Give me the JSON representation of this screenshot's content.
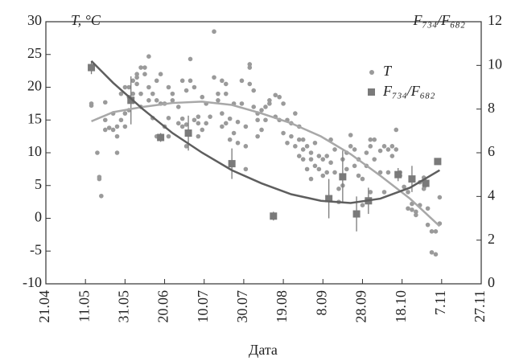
{
  "chart_data": {
    "type": "scatter",
    "xlabel": "Дата",
    "ylabel": "T, °C",
    "y2label": "F₇₃₄/F₆₈₂",
    "xlim": [
      111,
      331
    ],
    "xticks": [
      {
        "value": 111,
        "label": "21.04"
      },
      {
        "value": 131,
        "label": "11.05"
      },
      {
        "value": 151,
        "label": "31.05"
      },
      {
        "value": 171,
        "label": "20.06"
      },
      {
        "value": 191,
        "label": "10.07"
      },
      {
        "value": 211,
        "label": "30.07"
      },
      {
        "value": 231,
        "label": "19.08"
      },
      {
        "value": 251,
        "label": "8.09"
      },
      {
        "value": 271,
        "label": "28.09"
      },
      {
        "value": 291,
        "label": "18.10"
      },
      {
        "value": 311,
        "label": "7.11"
      },
      {
        "value": 331,
        "label": "27.11"
      }
    ],
    "ylim": [
      -10,
      30
    ],
    "yticks": [
      -10,
      -5,
      0,
      5,
      10,
      15,
      20,
      25,
      30
    ],
    "y2lim": [
      0,
      12
    ],
    "y2ticks": [
      0,
      2,
      4,
      6,
      8,
      10,
      12
    ],
    "series": [
      {
        "name": "T",
        "type": "scatter",
        "color": "#9a9a9a",
        "x": [
          134,
          134,
          137,
          138,
          138,
          139,
          141,
          141,
          141,
          143,
          145,
          145,
          147,
          147,
          147,
          149,
          149,
          151,
          151,
          151,
          153,
          153,
          153,
          155,
          155,
          157,
          157,
          157,
          159,
          159,
          159,
          161,
          161,
          163,
          163,
          163,
          165,
          165,
          167,
          167,
          167,
          169,
          169,
          171,
          171,
          173,
          173,
          173,
          175,
          175,
          178,
          178,
          180,
          180,
          180,
          182,
          182,
          182,
          184,
          184,
          186,
          186,
          188,
          188,
          188,
          190,
          190,
          192,
          192,
          194,
          196,
          196,
          198,
          198,
          200,
          200,
          200,
          202,
          202,
          202,
          204,
          204,
          206,
          206,
          208,
          208,
          210,
          210,
          212,
          212,
          212,
          214,
          214,
          214,
          216,
          216,
          218,
          218,
          218,
          220,
          220,
          222,
          222,
          224,
          224,
          227,
          227,
          229,
          229,
          231,
          231,
          233,
          233,
          235,
          235,
          237,
          237,
          239,
          239,
          239,
          241,
          241,
          241,
          243,
          243,
          245,
          245,
          245,
          247,
          247,
          249,
          249,
          251,
          251,
          253,
          253,
          255,
          255,
          257,
          257,
          259,
          259,
          261,
          261,
          263,
          263,
          265,
          265,
          267,
          267,
          269,
          269,
          271,
          271,
          273,
          273,
          275,
          275,
          275,
          277,
          277,
          280,
          280,
          282,
          282,
          284,
          284,
          286,
          286,
          288,
          288,
          290,
          290,
          292,
          294,
          294,
          296,
          296,
          298,
          298,
          300,
          300,
          302,
          302,
          304,
          304,
          306,
          306,
          308,
          308,
          310,
          310
        ],
        "values": [
          17.2,
          17.5,
          10,
          6.3,
          6,
          3.4,
          13.5,
          15,
          17.7,
          13.8,
          16,
          13.5,
          10,
          12.5,
          14,
          15,
          19,
          14,
          16,
          20,
          20,
          18.5,
          16.5,
          21,
          19,
          20.5,
          21.5,
          22,
          23,
          19,
          17,
          22,
          23,
          24.7,
          20,
          18,
          19,
          15.3,
          12.5,
          21,
          18,
          22,
          17.5,
          17.5,
          14,
          15.3,
          20,
          12.5,
          19,
          18,
          17,
          14.5,
          21,
          14,
          15.2,
          19.5,
          14.3,
          11,
          24.3,
          21,
          20,
          15,
          14.5,
          15.5,
          12.5,
          13.5,
          18.5,
          14.5,
          17.5,
          15.5,
          28.5,
          21.5,
          19,
          18,
          21,
          16,
          14,
          19,
          20.5,
          14.5,
          15.2,
          12,
          17.5,
          13,
          14.7,
          11.5,
          21,
          17.5,
          14,
          7.5,
          11,
          23.5,
          23,
          20.5,
          19.5,
          17,
          12.5,
          16,
          15,
          13.5,
          16.5,
          15,
          17,
          17.5,
          18,
          15.5,
          18.8,
          18.5,
          15,
          13,
          17.5,
          15,
          11.5,
          14.5,
          12.5,
          16,
          11,
          14,
          12,
          9.5,
          12,
          10.5,
          9,
          11,
          7.5,
          9,
          10,
          6,
          8,
          11.5,
          9.5,
          7.5,
          9,
          6.5,
          9.5,
          7,
          12,
          8.5,
          10.5,
          7,
          4.5,
          2.5,
          9,
          5,
          10,
          7.5,
          12.7,
          11,
          8,
          10.5,
          6.5,
          9,
          6,
          2,
          10,
          8,
          11,
          12,
          4,
          9,
          12,
          7,
          10.3,
          11,
          4,
          10.5,
          7,
          9.5,
          11,
          13.5,
          10.5,
          6.5,
          7,
          4.8,
          1.5,
          4,
          2.2,
          1.3,
          1,
          0.5,
          5.5,
          2,
          6.2,
          4.5,
          1.5,
          -1,
          -2,
          -5.2,
          -5.5,
          -2,
          3.2,
          -0.8
        ]
      },
      {
        "name": "F₇₃₄/F₆₈₂",
        "type": "scatter",
        "axis": "y2",
        "color": "#7a7a7a",
        "x": [
          134,
          154,
          169,
          183,
          205,
          226,
          254,
          261,
          268,
          274,
          289,
          296,
          303,
          309
        ],
        "values": [
          9.9,
          8.4,
          6.7,
          6.9,
          5.5,
          3.1,
          3.9,
          4.9,
          3.2,
          3.8,
          5.0,
          4.8,
          4.6,
          5.6
        ],
        "errors": [
          0.3,
          1.1,
          0.2,
          0.8,
          0.7,
          0.2,
          0.9,
          1.2,
          0.8,
          0.6,
          0.3,
          0.6,
          0.2,
          0.1
        ]
      },
      {
        "type": "line",
        "color": "#a8a8a8",
        "x": [
          134,
          145,
          160,
          175,
          190,
          205,
          220,
          235,
          250,
          265,
          280,
          295,
          310
        ],
        "values": [
          14.8,
          16.2,
          17,
          17.6,
          17.8,
          17.3,
          16,
          14.5,
          12.5,
          9.8,
          6.5,
          3,
          -1.2
        ]
      },
      {
        "type": "line",
        "axis": "y2",
        "color": "#5e5e5e",
        "x": [
          134,
          145,
          160,
          175,
          190,
          205,
          220,
          235,
          250,
          265,
          280,
          295,
          310
        ],
        "values": [
          10.2,
          9.2,
          8,
          6.9,
          6,
          5.2,
          4.6,
          4.1,
          3.8,
          3.7,
          3.9,
          4.4,
          5.2
        ]
      }
    ]
  }
}
